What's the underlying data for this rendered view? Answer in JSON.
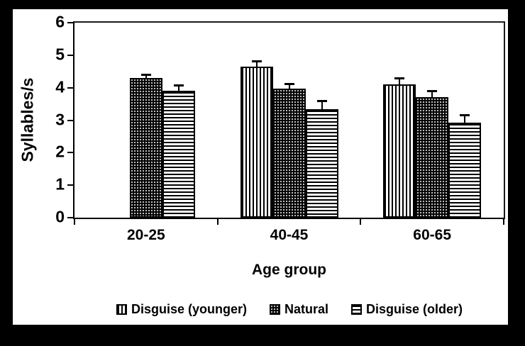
{
  "figure": {
    "y_axis_title": "Syllables/s",
    "x_axis_title": "Age group"
  },
  "chart_data": {
    "type": "bar",
    "title": "",
    "xlabel": "Age group",
    "ylabel": "Syllables/s",
    "categories": [
      "20-25",
      "40-45",
      "60-65"
    ],
    "series": [
      {
        "name": "Disguise (younger)",
        "pattern": "vertical-stripes",
        "values": [
          null,
          4.65,
          4.1
        ],
        "errors": [
          null,
          0.18,
          0.19
        ]
      },
      {
        "name": "Natural",
        "pattern": "dots",
        "values": [
          4.3,
          3.98,
          3.7
        ],
        "errors": [
          0.1,
          0.14,
          0.2
        ]
      },
      {
        "name": "Disguise (older)",
        "pattern": "horizontal-stripes",
        "values": [
          3.9,
          3.33,
          2.92
        ],
        "errors": [
          0.17,
          0.26,
          0.24
        ]
      }
    ],
    "ylim": [
      0,
      6
    ],
    "yticks": [
      0,
      1,
      2,
      3,
      4,
      5,
      6
    ],
    "grid": false,
    "error_bars": true,
    "legend_position": "bottom",
    "bar_missing_note": "No Disguise (younger) bar for the 20-25 group"
  },
  "colors": {
    "foreground": "#000000",
    "panel_background": "#ffffff",
    "canvas_border": "#000000",
    "frame": "#1a1a1a"
  }
}
